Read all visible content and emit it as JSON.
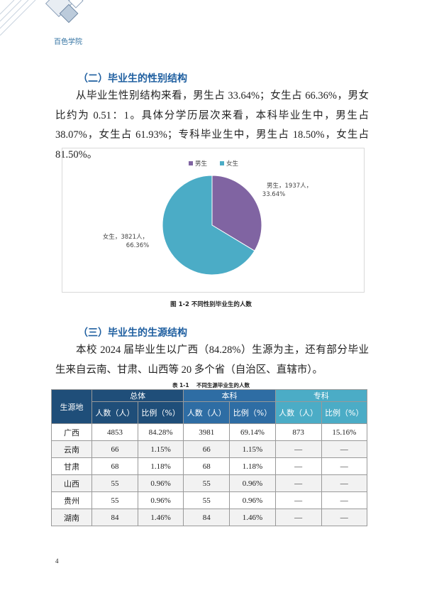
{
  "header": {
    "school": "百色学院"
  },
  "section_2": {
    "heading": "（二）毕业生的性别结构",
    "paragraph": "从毕业生性别结构来看，男生占 33.64%；女生占 66.36%，男女比约为 0.51：1。具体分学历层次来看，本科毕业生中，男生占 38.07%，女生占 61.93%；专科毕业生中，男生占 18.50%，女生占 81.50%。"
  },
  "chart_data": {
    "type": "pie",
    "categories": [
      "男生",
      "女生"
    ],
    "values": [
      1937,
      3821
    ],
    "value_labels": [
      "男生，1937人，",
      "女生，3821人，"
    ],
    "percents": [
      33.64,
      66.36
    ],
    "percent_labels": [
      "33.64%",
      "66.36%"
    ],
    "colors": [
      "#8064a2",
      "#4bacc6"
    ],
    "legend": "top"
  },
  "figure_caption": "图 1-2 不同性别毕业生的人数",
  "section_3": {
    "heading": "（三）毕业生的生源结构",
    "paragraph": "本校 2024 届毕业生以广西（84.28%）生源为主，还有部分毕业生来自云南、甘肃、山西等 20 多个省（自治区、直辖市）。"
  },
  "table": {
    "caption": "表 1-1    不同生源毕业生的人数",
    "row_header": "生源地",
    "group_headers": [
      "总体",
      "本科",
      "专科"
    ],
    "sub_headers": [
      "人数（人）",
      "比例（%）",
      "人数（人）",
      "比例（%）",
      "人数（人）",
      "比例（%）"
    ],
    "rows": [
      [
        "广西",
        "4853",
        "84.28%",
        "3981",
        "69.14%",
        "873",
        "15.16%"
      ],
      [
        "云南",
        "66",
        "1.15%",
        "66",
        "1.15%",
        "—",
        "—"
      ],
      [
        "甘肃",
        "68",
        "1.18%",
        "68",
        "1.18%",
        "—",
        "—"
      ],
      [
        "山西",
        "55",
        "0.96%",
        "55",
        "0.96%",
        "—",
        "—"
      ],
      [
        "贵州",
        "55",
        "0.96%",
        "55",
        "0.96%",
        "—",
        "—"
      ],
      [
        "湖南",
        "84",
        "1.46%",
        "84",
        "1.46%",
        "—",
        "—"
      ]
    ]
  },
  "page_number": "4"
}
